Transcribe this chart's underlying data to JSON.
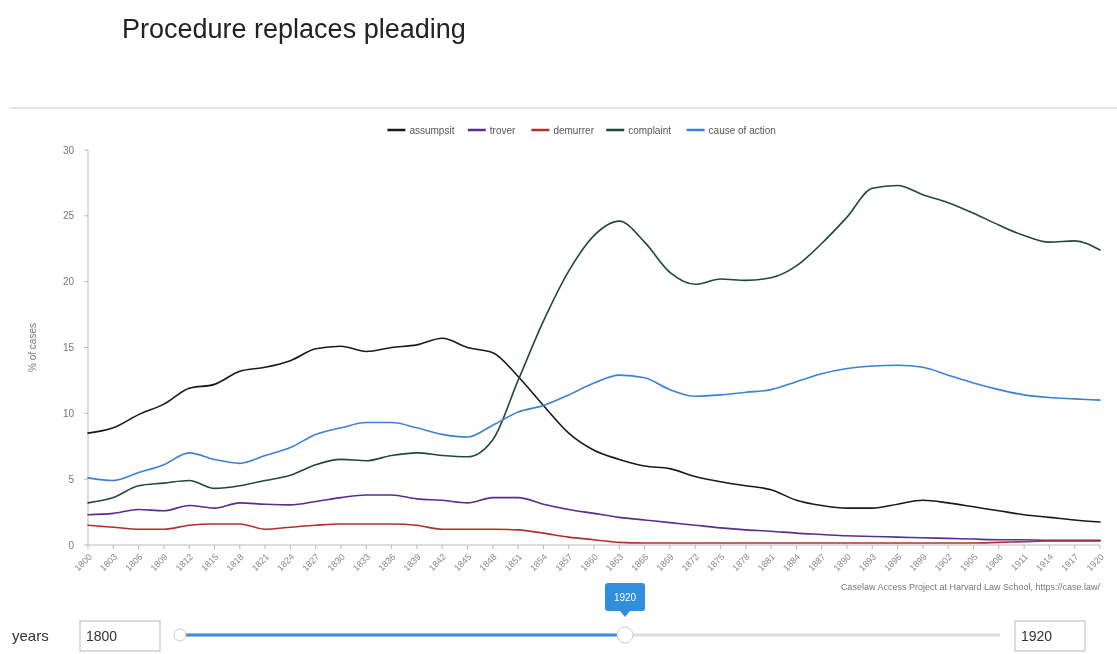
{
  "chart_data": {
    "type": "line",
    "title": "Procedure replaces pleading",
    "ylabel": "% of cases",
    "x": [
      1800,
      1803,
      1806,
      1809,
      1812,
      1815,
      1818,
      1821,
      1824,
      1827,
      1830,
      1833,
      1836,
      1839,
      1842,
      1845,
      1848,
      1851,
      1854,
      1857,
      1860,
      1863,
      1866,
      1869,
      1872,
      1875,
      1878,
      1881,
      1884,
      1887,
      1890,
      1893,
      1896,
      1899,
      1902,
      1905,
      1908,
      1911,
      1914,
      1917,
      1920
    ],
    "series": [
      {
        "name": "assumpsit",
        "color": "#1a1a1a",
        "values": [
          8.5,
          8.9,
          9.9,
          10.7,
          11.9,
          12.2,
          13.2,
          13.5,
          14.0,
          14.9,
          15.1,
          14.7,
          15.0,
          15.2,
          15.7,
          15.0,
          14.6,
          12.8,
          10.6,
          8.5,
          7.2,
          6.5,
          6.0,
          5.8,
          5.2,
          4.8,
          4.5,
          4.2,
          3.4,
          3.0,
          2.8,
          2.8,
          3.1,
          3.4,
          3.2,
          2.9,
          2.6,
          2.3,
          2.1,
          1.9,
          1.75
        ]
      },
      {
        "name": "trover",
        "color": "#5b2d8e",
        "values": [
          2.3,
          2.4,
          2.7,
          2.6,
          3.0,
          2.8,
          3.2,
          3.1,
          3.05,
          3.3,
          3.6,
          3.8,
          3.8,
          3.5,
          3.4,
          3.2,
          3.6,
          3.6,
          3.1,
          2.7,
          2.4,
          2.1,
          1.9,
          1.7,
          1.5,
          1.3,
          1.15,
          1.05,
          0.9,
          0.8,
          0.7,
          0.65,
          0.6,
          0.55,
          0.5,
          0.45,
          0.4,
          0.4,
          0.35,
          0.35,
          0.35
        ]
      },
      {
        "name": "demurrer",
        "color": "#b03030",
        "values": [
          1.5,
          1.35,
          1.2,
          1.2,
          1.5,
          1.6,
          1.6,
          1.2,
          1.35,
          1.5,
          1.6,
          1.6,
          1.6,
          1.5,
          1.2,
          1.2,
          1.2,
          1.15,
          0.9,
          0.6,
          0.4,
          0.2,
          0.15,
          0.15,
          0.15,
          0.15,
          0.15,
          0.15,
          0.15,
          0.15,
          0.15,
          0.15,
          0.15,
          0.15,
          0.15,
          0.15,
          0.2,
          0.25,
          0.3,
          0.3,
          0.3
        ]
      },
      {
        "name": "complaint",
        "color": "#1f4a3a",
        "values": [
          3.2,
          3.6,
          4.5,
          4.7,
          4.9,
          4.3,
          4.5,
          4.9,
          5.3,
          6.1,
          6.5,
          6.4,
          6.8,
          7.0,
          6.8,
          6.7,
          8.0,
          12.5,
          17.0,
          20.8,
          23.5,
          24.6,
          23.0,
          20.7,
          19.8,
          20.2,
          20.1,
          20.3,
          21.2,
          22.9,
          24.9,
          27.1,
          27.3,
          26.6,
          26.0,
          25.2,
          24.3,
          23.5,
          23.0,
          23.1,
          22.4
        ]
      },
      {
        "name": "cause of action",
        "color": "#3b82d6",
        "values": [
          5.1,
          4.9,
          5.5,
          6.1,
          7.0,
          6.5,
          6.2,
          6.8,
          7.4,
          8.4,
          8.9,
          9.3,
          9.3,
          8.9,
          8.4,
          8.2,
          9.1,
          10.1,
          10.6,
          11.4,
          12.3,
          12.9,
          12.7,
          11.8,
          11.3,
          11.4,
          11.6,
          11.8,
          12.4,
          13.0,
          13.4,
          13.6,
          13.65,
          13.5,
          12.9,
          12.3,
          11.8,
          11.4,
          11.2,
          11.1,
          11.0
        ]
      }
    ],
    "xlim": [
      1800,
      1920
    ],
    "xticks": [
      1800,
      1803,
      1806,
      1809,
      1812,
      1815,
      1818,
      1821,
      1824,
      1827,
      1830,
      1833,
      1836,
      1839,
      1842,
      1845,
      1848,
      1851,
      1854,
      1857,
      1860,
      1863,
      1866,
      1869,
      1872,
      1875,
      1878,
      1881,
      1884,
      1887,
      1890,
      1893,
      1896,
      1899,
      1902,
      1905,
      1908,
      1911,
      1914,
      1917,
      1920
    ],
    "ylim": [
      0,
      30
    ],
    "yticks": [
      0,
      5,
      10,
      15,
      20,
      25,
      30
    ],
    "legend": "top",
    "annotations": [
      "Caselaw Access Project at Harvard Law School, https://case.law/",
      "years",
      "1800",
      "1920",
      "1920"
    ]
  }
}
